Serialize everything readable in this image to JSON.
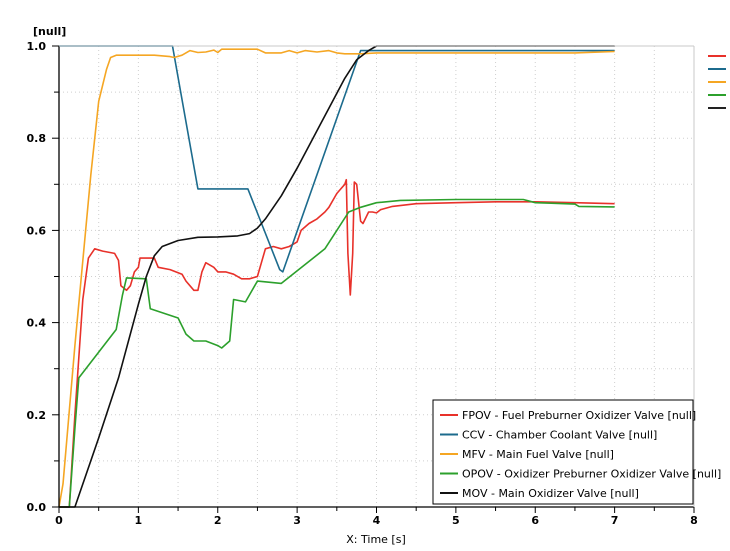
{
  "chart_data": {
    "type": "line",
    "title": "",
    "xlabel": "X: Time [s]",
    "ylabel": "[null]",
    "xlim": [
      0,
      8
    ],
    "ylim": [
      0,
      1.0
    ],
    "x_ticks": [
      "0",
      "1",
      "2",
      "3",
      "4",
      "5",
      "6",
      "7",
      "8"
    ],
    "y_ticks": [
      "0.0",
      "0.2",
      "0.4",
      "0.6",
      "0.8",
      "1.0"
    ],
    "grid": true,
    "legend_position": "lower-right-inside",
    "series": [
      {
        "name": "FPOV - Fuel Preburner Oxidizer Valve [null]",
        "color": "#e8312a",
        "points": [
          [
            0,
            0
          ],
          [
            0.13,
            0
          ],
          [
            0.2,
            0.2
          ],
          [
            0.3,
            0.45
          ],
          [
            0.37,
            0.54
          ],
          [
            0.45,
            0.56
          ],
          [
            0.55,
            0.555
          ],
          [
            0.7,
            0.55
          ],
          [
            0.75,
            0.535
          ],
          [
            0.78,
            0.48
          ],
          [
            0.85,
            0.47
          ],
          [
            0.9,
            0.48
          ],
          [
            0.95,
            0.51
          ],
          [
            1.0,
            0.52
          ],
          [
            1.02,
            0.54
          ],
          [
            1.2,
            0.54
          ],
          [
            1.25,
            0.52
          ],
          [
            1.4,
            0.515
          ],
          [
            1.55,
            0.505
          ],
          [
            1.6,
            0.49
          ],
          [
            1.7,
            0.47
          ],
          [
            1.75,
            0.47
          ],
          [
            1.8,
            0.51
          ],
          [
            1.85,
            0.53
          ],
          [
            1.95,
            0.52
          ],
          [
            2.0,
            0.51
          ],
          [
            2.1,
            0.51
          ],
          [
            2.2,
            0.505
          ],
          [
            2.3,
            0.495
          ],
          [
            2.4,
            0.495
          ],
          [
            2.5,
            0.5
          ],
          [
            2.55,
            0.53
          ],
          [
            2.6,
            0.56
          ],
          [
            2.7,
            0.565
          ],
          [
            2.8,
            0.56
          ],
          [
            2.9,
            0.565
          ],
          [
            3.0,
            0.575
          ],
          [
            3.05,
            0.6
          ],
          [
            3.15,
            0.615
          ],
          [
            3.25,
            0.625
          ],
          [
            3.35,
            0.64
          ],
          [
            3.4,
            0.65
          ],
          [
            3.5,
            0.68
          ],
          [
            3.55,
            0.69
          ],
          [
            3.6,
            0.7
          ],
          [
            3.62,
            0.71
          ],
          [
            3.64,
            0.55
          ],
          [
            3.67,
            0.46
          ],
          [
            3.7,
            0.55
          ],
          [
            3.72,
            0.705
          ],
          [
            3.75,
            0.7
          ],
          [
            3.8,
            0.62
          ],
          [
            3.83,
            0.615
          ],
          [
            3.9,
            0.64
          ],
          [
            3.95,
            0.64
          ],
          [
            4.0,
            0.638
          ],
          [
            4.05,
            0.645
          ],
          [
            4.2,
            0.652
          ],
          [
            4.5,
            0.658
          ],
          [
            5.0,
            0.66
          ],
          [
            5.5,
            0.662
          ],
          [
            6.0,
            0.662
          ],
          [
            6.5,
            0.66
          ],
          [
            7.0,
            0.658
          ]
        ]
      },
      {
        "name": "CCV - Chamber Coolant Valve [null]",
        "color": "#1c6b8d",
        "points": [
          [
            0,
            1.0
          ],
          [
            1.43,
            1.0
          ],
          [
            1.75,
            0.69
          ],
          [
            2.38,
            0.69
          ],
          [
            2.78,
            0.515
          ],
          [
            2.82,
            0.51
          ],
          [
            3.8,
            0.99
          ],
          [
            5.0,
            0.99
          ],
          [
            6.0,
            0.99
          ],
          [
            7.0,
            0.99
          ]
        ]
      },
      {
        "name": "MFV - Main Fuel Valve [null]",
        "color": "#f5a623",
        "points": [
          [
            0,
            0
          ],
          [
            0.05,
            0.05
          ],
          [
            0.2,
            0.35
          ],
          [
            0.4,
            0.72
          ],
          [
            0.5,
            0.88
          ],
          [
            0.6,
            0.95
          ],
          [
            0.65,
            0.975
          ],
          [
            0.72,
            0.98
          ],
          [
            1.0,
            0.98
          ],
          [
            1.2,
            0.98
          ],
          [
            1.4,
            0.977
          ],
          [
            1.45,
            0.975
          ],
          [
            1.55,
            0.98
          ],
          [
            1.65,
            0.99
          ],
          [
            1.75,
            0.986
          ],
          [
            1.85,
            0.987
          ],
          [
            1.95,
            0.991
          ],
          [
            2.0,
            0.986
          ],
          [
            2.05,
            0.993
          ],
          [
            2.5,
            0.993
          ],
          [
            2.6,
            0.985
          ],
          [
            2.8,
            0.985
          ],
          [
            2.9,
            0.99
          ],
          [
            3.0,
            0.985
          ],
          [
            3.1,
            0.99
          ],
          [
            3.25,
            0.987
          ],
          [
            3.4,
            0.99
          ],
          [
            3.5,
            0.985
          ],
          [
            3.6,
            0.983
          ],
          [
            3.8,
            0.983
          ],
          [
            4.0,
            0.985
          ],
          [
            4.5,
            0.985
          ],
          [
            5.0,
            0.985
          ],
          [
            5.5,
            0.985
          ],
          [
            6.0,
            0.985
          ],
          [
            6.5,
            0.985
          ],
          [
            7.0,
            0.988
          ]
        ]
      },
      {
        "name": "OPOV - Oxidizer Preburner Oxidizer Valve [null]",
        "color": "#2ca02c",
        "points": [
          [
            0,
            0
          ],
          [
            0.13,
            0
          ],
          [
            0.2,
            0.17
          ],
          [
            0.25,
            0.28
          ],
          [
            0.72,
            0.385
          ],
          [
            0.8,
            0.46
          ],
          [
            0.85,
            0.497
          ],
          [
            1.1,
            0.495
          ],
          [
            1.15,
            0.43
          ],
          [
            1.5,
            0.41
          ],
          [
            1.6,
            0.375
          ],
          [
            1.7,
            0.36
          ],
          [
            1.85,
            0.36
          ],
          [
            2.0,
            0.35
          ],
          [
            2.05,
            0.345
          ],
          [
            2.15,
            0.36
          ],
          [
            2.2,
            0.45
          ],
          [
            2.35,
            0.445
          ],
          [
            2.5,
            0.49
          ],
          [
            2.8,
            0.485
          ],
          [
            3.35,
            0.56
          ],
          [
            3.5,
            0.6
          ],
          [
            3.65,
            0.64
          ],
          [
            3.8,
            0.65
          ],
          [
            4.0,
            0.66
          ],
          [
            4.3,
            0.665
          ],
          [
            5.0,
            0.667
          ],
          [
            5.5,
            0.667
          ],
          [
            5.85,
            0.667
          ],
          [
            6.0,
            0.66
          ],
          [
            6.2,
            0.659
          ],
          [
            6.5,
            0.657
          ],
          [
            6.55,
            0.652
          ],
          [
            7.0,
            0.651
          ]
        ]
      },
      {
        "name": "MOV - Main Oxidizer Valve [null]",
        "color": "#111111",
        "points": [
          [
            0,
            0
          ],
          [
            0.2,
            0
          ],
          [
            0.5,
            0.15
          ],
          [
            0.75,
            0.28
          ],
          [
            1.0,
            0.44
          ],
          [
            1.1,
            0.5
          ],
          [
            1.2,
            0.545
          ],
          [
            1.3,
            0.565
          ],
          [
            1.5,
            0.578
          ],
          [
            1.75,
            0.585
          ],
          [
            2.0,
            0.586
          ],
          [
            2.25,
            0.588
          ],
          [
            2.4,
            0.593
          ],
          [
            2.5,
            0.605
          ],
          [
            2.6,
            0.625
          ],
          [
            2.8,
            0.675
          ],
          [
            3.0,
            0.735
          ],
          [
            3.2,
            0.8
          ],
          [
            3.4,
            0.865
          ],
          [
            3.6,
            0.93
          ],
          [
            3.75,
            0.97
          ],
          [
            3.9,
            0.99
          ],
          [
            4.0,
            1.0
          ],
          [
            5.0,
            1.0
          ],
          [
            6.0,
            1.0
          ],
          [
            7.0,
            1.0
          ]
        ]
      }
    ]
  },
  "side_swatches": [
    "#e8312a",
    "#1c6b8d",
    "#f5a623",
    "#2ca02c",
    "#222222"
  ]
}
